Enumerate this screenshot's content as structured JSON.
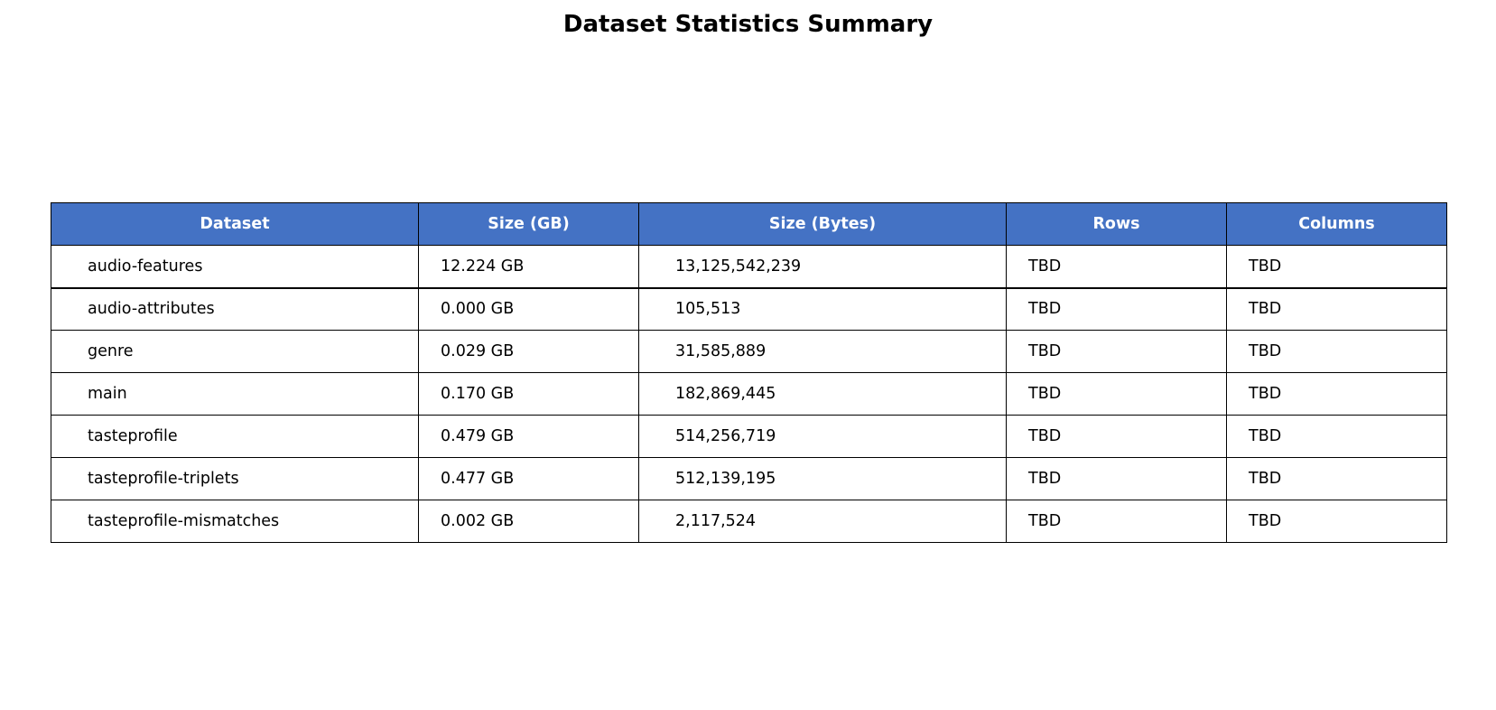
{
  "title": "Dataset Statistics Summary",
  "header_color": "#4472C4",
  "header_text_color": "#FFFFFF",
  "chart_data": {
    "type": "table",
    "title": "Dataset Statistics Summary",
    "columns": [
      "Dataset",
      "Size (GB)",
      "Size (Bytes)",
      "Rows",
      "Columns"
    ],
    "rows": [
      [
        "audio-features",
        "12.224 GB",
        "13,125,542,239",
        "TBD",
        "TBD"
      ],
      [
        "audio-attributes",
        "0.000 GB",
        "105,513",
        "TBD",
        "TBD"
      ],
      [
        "genre",
        "0.029 GB",
        "31,585,889",
        "TBD",
        "TBD"
      ],
      [
        "main",
        "0.170 GB",
        "182,869,445",
        "TBD",
        "TBD"
      ],
      [
        "tasteprofile",
        "0.479 GB",
        "514,256,719",
        "TBD",
        "TBD"
      ],
      [
        "tasteprofile-triplets",
        "0.477 GB",
        "512,139,195",
        "TBD",
        "TBD"
      ],
      [
        "tasteprofile-mismatches",
        "0.002 GB",
        "2,117,524",
        "TBD",
        "TBD"
      ]
    ]
  }
}
